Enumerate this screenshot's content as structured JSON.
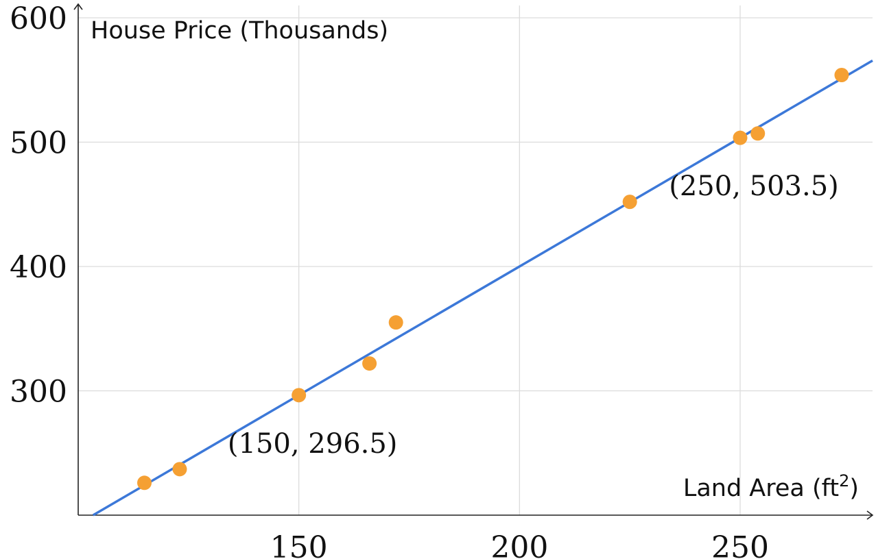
{
  "chart_data": {
    "type": "scatter",
    "xlabel": "Land Area (ft",
    "xlabel_sup": "2",
    "xlabel_end": ")",
    "ylabel": "House Price (Thousands)",
    "xlim": [
      100,
      280
    ],
    "ylim": [
      200,
      600
    ],
    "x_ticks": [
      150,
      200,
      250
    ],
    "y_ticks": [
      300,
      400,
      500,
      600
    ],
    "grid": true,
    "points": [
      {
        "x": 115,
        "y": 226
      },
      {
        "x": 123,
        "y": 237
      },
      {
        "x": 150,
        "y": 296.5
      },
      {
        "x": 166,
        "y": 322
      },
      {
        "x": 172,
        "y": 355
      },
      {
        "x": 225,
        "y": 452
      },
      {
        "x": 250,
        "y": 503.5
      },
      {
        "x": 254,
        "y": 507
      },
      {
        "x": 273,
        "y": 554
      }
    ],
    "fit_line": {
      "slope": 2.07,
      "intercept": -14
    },
    "annotations": [
      {
        "text": "(150, 296.5)",
        "x": 150,
        "y": 296.5
      },
      {
        "text": "(250, 503.5)",
        "x": 250,
        "y": 503.5
      }
    ],
    "colors": {
      "points": "#f5a033",
      "line": "#3c78d8"
    }
  }
}
